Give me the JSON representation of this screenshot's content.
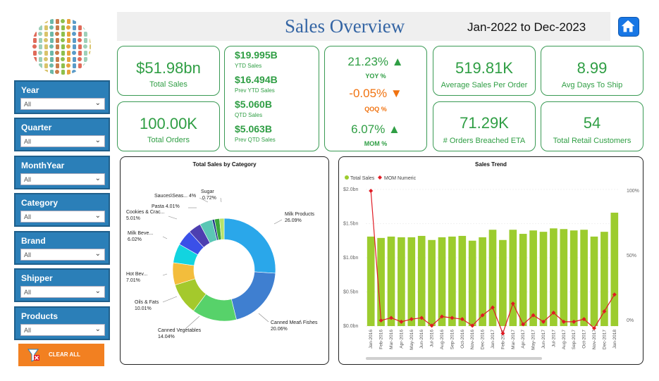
{
  "header": {
    "title": "Sales Overview",
    "date_range": "Jan-2022 to Dec-2023"
  },
  "colors": {
    "accent_green": "#2f9e44",
    "slicer_blue": "#2b7fb8",
    "orange": "#f28021",
    "bar_green": "#9ccc2e",
    "line_red": "#e01b24"
  },
  "slicers": [
    {
      "label": "Year",
      "value": "All"
    },
    {
      "label": "Quarter",
      "value": "All"
    },
    {
      "label": "MonthYear",
      "value": "All"
    },
    {
      "label": "Category",
      "value": "All"
    },
    {
      "label": "Brand",
      "value": "All"
    },
    {
      "label": "Shipper",
      "value": "All"
    },
    {
      "label": "Products",
      "value": "All"
    }
  ],
  "clear_all": "CLEAR ALL",
  "kpis": {
    "total_sales": {
      "value": "$51.98bn",
      "label": "Total Sales"
    },
    "total_orders": {
      "value": "100.00K",
      "label": "Total Orders"
    },
    "ytd": [
      {
        "value": "$19.995B",
        "label": "YTD Sales"
      },
      {
        "value": "$16.494B",
        "label": "Prev YTD Sales"
      },
      {
        "value": "$5.060B",
        "label": "QTD Sales"
      },
      {
        "value": "$5.063B",
        "label": "Prev QTD Sales"
      }
    ],
    "yoy": {
      "value": "21.23%",
      "label": "YOY %",
      "arrow": "▲"
    },
    "qoq": {
      "value": "-0.05%",
      "label": "QOQ %",
      "arrow": "▼"
    },
    "mom": {
      "value": "6.07%",
      "label": "MOM %",
      "arrow": "▲"
    },
    "avg_sales_order": {
      "value": "519.81K",
      "label": "Average Sales Per Order"
    },
    "avg_days_ship": {
      "value": "8.99",
      "label": "Avg Days To Ship"
    },
    "orders_breached": {
      "value": "71.29K",
      "label": "# Orders Breached ETA"
    },
    "retail_customers": {
      "value": "54",
      "label": "Total Retail Customers"
    }
  },
  "chart_data": [
    {
      "type": "pie",
      "title": "Total Sales by Category",
      "slices": [
        {
          "label": "Milk Products",
          "pct_label": "26.09%",
          "value": 26.09,
          "color": "#2aa7ea"
        },
        {
          "label": "Canned Meat\\ Fishes",
          "pct_label": "20.06%",
          "value": 20.06,
          "color": "#3f7fd0"
        },
        {
          "label": "Canned Vegetables",
          "pct_label": "14.04%",
          "value": 14.04,
          "color": "#57d26a"
        },
        {
          "label": "Oils & Fats",
          "pct_label": "10.01%",
          "value": 10.01,
          "color": "#a4c92c"
        },
        {
          "label": "Hot Bev...",
          "pct_label": "7.01%",
          "value": 7.01,
          "color": "#f3bd3c"
        },
        {
          "label": "Milk Beve...",
          "pct_label": "6.02%",
          "value": 6.02,
          "color": "#12d4e0"
        },
        {
          "label": "Cookies & Crac...",
          "pct_label": "5.01%",
          "value": 5.01,
          "color": "#3a50e8"
        },
        {
          "label": "Pasta",
          "pct_label": "4.01%",
          "value": 4.01,
          "color": "#4d3fb0"
        },
        {
          "label": "Sauces\\Seas...",
          "pct_label": "4%",
          "value": 4.0,
          "color": "#5bc7b5"
        },
        {
          "label": "Sugar",
          "pct_label": "0.72%",
          "value": 0.72,
          "color": "#1e3a8a"
        }
      ],
      "extra_slices": [
        {
          "value": 1.6,
          "color": "#3aa63a"
        },
        {
          "value": 1.43,
          "color": "#b7e36a"
        }
      ]
    },
    {
      "type": "bar",
      "title": "Sales Trend",
      "legend": [
        "Total Sales",
        "MOM Numeric"
      ],
      "categories": [
        "Jan-2016",
        "Feb-2016",
        "Mar-2016",
        "Apr-2016",
        "May-2016",
        "Jun-2016",
        "Jul-2016",
        "Aug-2016",
        "Sep-2016",
        "Oct-2016",
        "Nov-2016",
        "Dec-2016",
        "Jan-2017",
        "Feb-2017",
        "Mar-2017",
        "Apr-2017",
        "May-2017",
        "Jun-2017",
        "Jul-2017",
        "Aug-2017",
        "Sep-2017",
        "Oct-2017",
        "Nov-2017",
        "Dec-2017",
        "Jan-2018"
      ],
      "bar_values": [
        1.31,
        1.29,
        1.31,
        1.3,
        1.3,
        1.32,
        1.26,
        1.3,
        1.31,
        1.32,
        1.25,
        1.3,
        1.41,
        1.26,
        1.41,
        1.35,
        1.4,
        1.38,
        1.43,
        1.42,
        1.4,
        1.41,
        1.31,
        1.38,
        1.66
      ],
      "line_values": [
        100,
        0,
        2,
        -1,
        1,
        2,
        -4,
        3,
        2,
        1,
        -4,
        4,
        10,
        -10,
        13,
        -3,
        4,
        -1,
        6,
        -1,
        -1,
        1,
        -6,
        7,
        20
      ],
      "y_left_ticks": [
        "$0.0bn",
        "$0.5bn",
        "$1.0bn",
        "$1.5bn",
        "$2.0bn"
      ],
      "y_left_range": [
        0,
        2.0
      ],
      "y_right_ticks": [
        "0%",
        "50%",
        "100%"
      ],
      "y_right_range": [
        -20,
        105
      ]
    }
  ]
}
